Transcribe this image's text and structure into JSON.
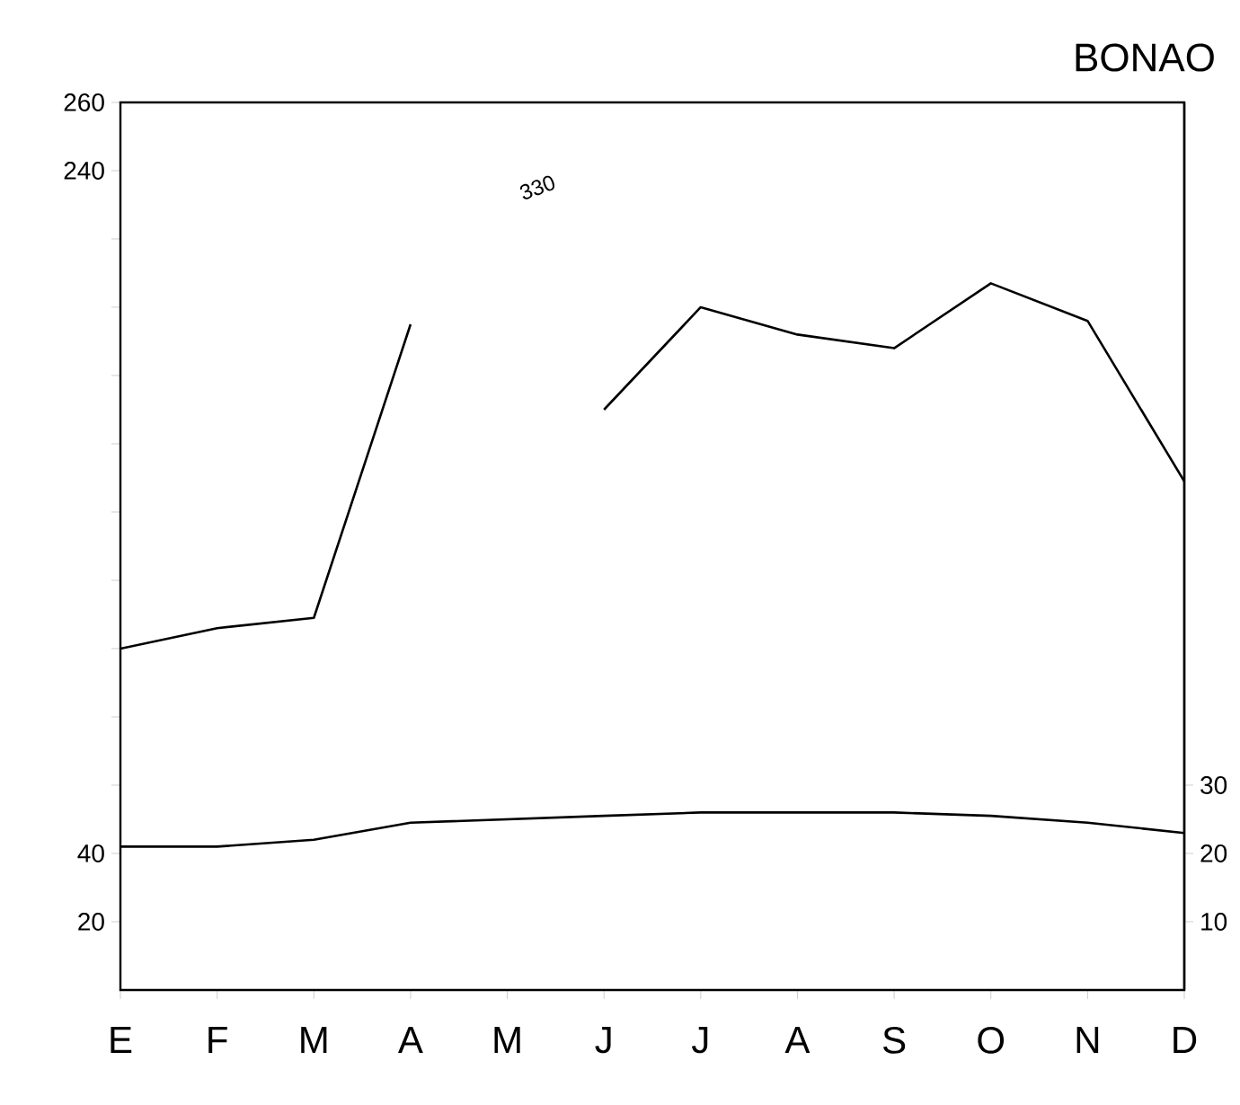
{
  "chart_data": {
    "type": "line",
    "title": "BONAO",
    "categories": [
      "E",
      "F",
      "M",
      "A",
      "M",
      "J",
      "J",
      "A",
      "S",
      "O",
      "N",
      "D"
    ],
    "series": [
      {
        "color": "#000000",
        "values": [
          100,
          106,
          109,
          195,
          null,
          170,
          200,
          192,
          188,
          207,
          196,
          149
        ]
      },
      {
        "color": "#000000",
        "axis": "y2",
        "values": [
          21,
          21,
          22,
          24.5,
          25,
          25.5,
          26,
          26,
          26,
          25.5,
          24.5,
          23
        ]
      }
    ],
    "ylim": [
      0,
      260
    ],
    "yticks": [
      20,
      40,
      {
        "value": 60,
        "label": null
      },
      {
        "value": 80,
        "label": null
      },
      {
        "value": 100,
        "label": null
      },
      {
        "value": 120,
        "label": null
      },
      {
        "value": 140,
        "label": null
      },
      {
        "value": 160,
        "label": null
      },
      {
        "value": 180,
        "label": null
      },
      {
        "value": 200,
        "label": null
      },
      {
        "value": 220,
        "label": null
      },
      240,
      260
    ],
    "y2lim": [
      0,
      130
    ],
    "y2ticks": [
      10,
      20,
      30
    ],
    "annotations": [
      "330"
    ]
  }
}
